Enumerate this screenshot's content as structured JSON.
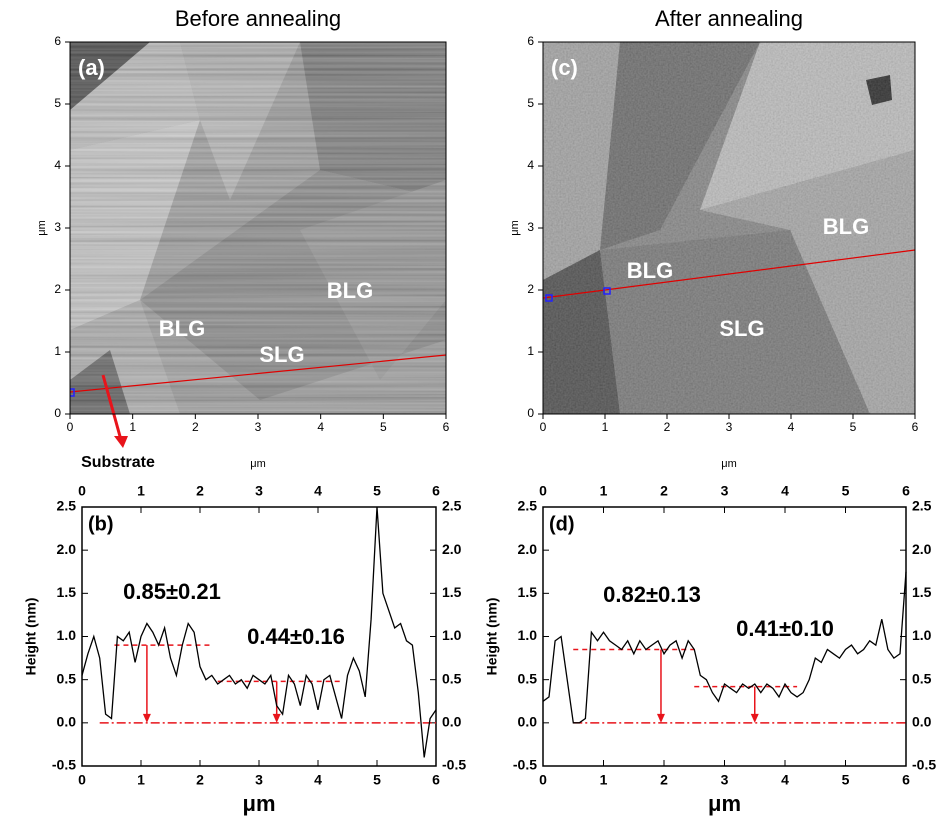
{
  "images": [
    {
      "title": "Before annealing",
      "panel_label": "(a)",
      "xlabel": "μm",
      "ylabel": "μm",
      "xlim": [
        0,
        6
      ],
      "ylim": [
        0,
        6
      ],
      "xticks": [
        0,
        1,
        2,
        3,
        4,
        5,
        6
      ],
      "yticks": [
        0,
        1,
        2,
        3,
        4,
        5,
        6
      ],
      "labels": [
        "BLG",
        "BLG",
        "SLG"
      ],
      "annotation": "Substrate"
    },
    {
      "title": "After annealing",
      "panel_label": "(c)",
      "xlabel": "μm",
      "ylabel": "μm",
      "xlim": [
        0,
        6
      ],
      "ylim": [
        0,
        6
      ],
      "xticks": [
        0,
        1,
        2,
        3,
        4,
        5,
        6
      ],
      "yticks": [
        0,
        1,
        2,
        3,
        4,
        5,
        6
      ],
      "labels": [
        "BLG",
        "BLG",
        "SLG"
      ]
    }
  ],
  "chart_data": [
    {
      "type": "line",
      "panel_label": "(b)",
      "xlabel": "μm",
      "ylabel": "Height (nm)",
      "xlim": [
        0,
        6
      ],
      "ylim": [
        -0.5,
        2.5
      ],
      "xticks": [
        0,
        1,
        2,
        3,
        4,
        5,
        6
      ],
      "yticks": [
        2.5,
        {
          "value": 2,
          "label": "2.0"
        },
        1.5,
        {
          "value": 1,
          "label": "1.0"
        },
        0.5,
        {
          "value": 0,
          "label": "0.0"
        },
        -0.5
      ],
      "annotations": [
        "0.85±0.21",
        "0.44±0.16"
      ],
      "x": [
        0,
        0.1,
        0.2,
        0.3,
        0.4,
        0.5,
        0.6,
        0.7,
        0.8,
        0.9,
        1,
        1.1,
        1.2,
        1.3,
        1.4,
        1.5,
        1.6,
        1.7,
        1.8,
        1.9,
        2,
        2.1,
        2.2,
        2.3,
        2.4,
        2.5,
        2.6,
        2.7,
        2.8,
        2.9,
        3,
        3.1,
        3.2,
        3.3,
        3.4,
        3.5,
        3.6,
        3.7,
        3.8,
        3.9,
        4,
        4.1,
        4.2,
        4.3,
        4.4,
        4.5,
        4.6,
        4.7,
        4.8,
        4.9,
        5,
        5.1,
        5.2,
        5.3,
        5.4,
        5.5,
        5.6,
        5.7,
        5.8,
        5.9,
        6
      ],
      "series": [
        {
          "color": "#000000",
          "values": [
            0.55,
            0.8,
            1.0,
            0.75,
            0.1,
            0.05,
            1.0,
            0.95,
            1.05,
            0.7,
            1.0,
            1.15,
            1.05,
            0.9,
            1.1,
            0.75,
            0.55,
            0.9,
            1.15,
            1.05,
            0.65,
            0.5,
            0.55,
            0.45,
            0.5,
            0.55,
            0.45,
            0.5,
            0.4,
            0.55,
            0.5,
            0.45,
            0.55,
            0.2,
            0.1,
            0.55,
            0.45,
            0.2,
            0.55,
            0.45,
            0.15,
            0.5,
            0.55,
            0.3,
            0.05,
            0.55,
            0.75,
            0.6,
            0.3,
            1.2,
            2.5,
            1.5,
            1.3,
            1.1,
            1.15,
            0.95,
            0.9,
            0.35,
            -0.4,
            0.05,
            0.15
          ]
        }
      ],
      "levels": [
        {
          "y": 0,
          "x": [
            0.3,
            6
          ]
        },
        {
          "y": 0.9,
          "x": [
            0.55,
            2.2
          ]
        },
        {
          "y": 0.48,
          "x": [
            2.3,
            4.4
          ]
        }
      ],
      "arrows": [
        {
          "x": 1.1,
          "from": 0.9,
          "to": 0
        },
        {
          "x": 3.3,
          "from": 0.48,
          "to": 0
        }
      ],
      "guide_color": "#e8141b"
    },
    {
      "type": "line",
      "panel_label": "(d)",
      "xlabel": "μm",
      "ylabel": "Height (nm)",
      "xlim": [
        0,
        6
      ],
      "ylim": [
        -0.5,
        2.5
      ],
      "xticks": [
        0,
        1,
        2,
        3,
        4,
        5,
        6
      ],
      "yticks": [
        2.5,
        {
          "value": 2,
          "label": "2.0"
        },
        1.5,
        {
          "value": 1,
          "label": "1.0"
        },
        0.5,
        {
          "value": 0,
          "label": "0.0"
        },
        -0.5
      ],
      "annotations": [
        "0.82±0.13",
        "0.41±0.10"
      ],
      "x": [
        0,
        0.1,
        0.2,
        0.3,
        0.4,
        0.5,
        0.6,
        0.7,
        0.8,
        0.9,
        1,
        1.1,
        1.2,
        1.3,
        1.4,
        1.5,
        1.6,
        1.7,
        1.8,
        1.9,
        2,
        2.1,
        2.2,
        2.3,
        2.4,
        2.5,
        2.6,
        2.7,
        2.8,
        2.9,
        3,
        3.1,
        3.2,
        3.3,
        3.4,
        3.5,
        3.6,
        3.7,
        3.8,
        3.9,
        4,
        4.1,
        4.2,
        4.3,
        4.4,
        4.5,
        4.6,
        4.7,
        4.8,
        4.9,
        5,
        5.1,
        5.2,
        5.3,
        5.4,
        5.5,
        5.6,
        5.7,
        5.8,
        5.9,
        6
      ],
      "series": [
        {
          "color": "#000000",
          "values": [
            0.25,
            0.3,
            0.95,
            1.0,
            0.5,
            0.0,
            0.0,
            0.05,
            1.05,
            0.95,
            1.05,
            0.95,
            0.9,
            0.85,
            0.95,
            0.8,
            0.95,
            0.85,
            0.9,
            0.95,
            0.8,
            0.9,
            0.95,
            0.75,
            0.95,
            0.85,
            0.55,
            0.5,
            0.35,
            0.25,
            0.45,
            0.4,
            0.35,
            0.45,
            0.4,
            0.45,
            0.35,
            0.45,
            0.4,
            0.3,
            0.45,
            0.35,
            0.3,
            0.35,
            0.5,
            0.75,
            0.7,
            0.85,
            0.8,
            0.75,
            0.85,
            0.9,
            0.8,
            0.85,
            0.95,
            0.9,
            1.2,
            0.85,
            0.75,
            0.8,
            1.75
          ]
        }
      ],
      "levels": [
        {
          "y": 0,
          "x": [
            0.5,
            6
          ]
        },
        {
          "y": 0.85,
          "x": [
            0.5,
            2.5
          ]
        },
        {
          "y": 0.42,
          "x": [
            2.5,
            4.2
          ]
        }
      ],
      "arrows": [
        {
          "x": 1.95,
          "from": 0.85,
          "to": 0
        },
        {
          "x": 3.5,
          "from": 0.42,
          "to": 0
        }
      ],
      "guide_color": "#e8141b"
    }
  ]
}
